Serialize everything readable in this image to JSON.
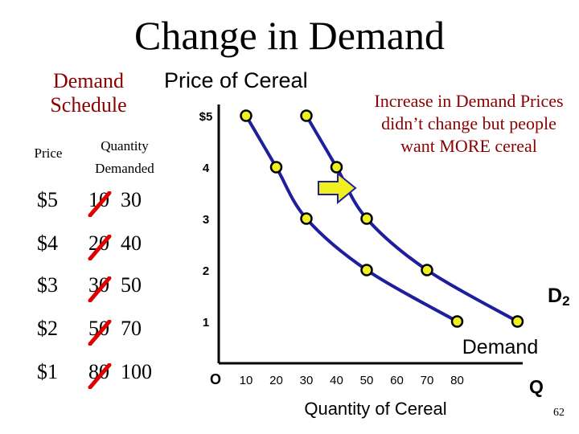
{
  "slide": {
    "title": "Change in Demand",
    "page_number": "62"
  },
  "schedule": {
    "title": "Demand Schedule",
    "price_header": "Price",
    "quantity_header_line1": "Quantity",
    "quantity_header_line2": "Demanded",
    "rows": [
      {
        "price": "$5",
        "old_qty": "10",
        "new_qty": "30"
      },
      {
        "price": "$4",
        "old_qty": "20",
        "new_qty": "40"
      },
      {
        "price": "$3",
        "old_qty": "30",
        "new_qty": "50"
      },
      {
        "price": "$2",
        "old_qty": "50",
        "new_qty": "70"
      },
      {
        "price": "$1",
        "old_qty": "80",
        "new_qty": "100"
      }
    ],
    "cross_color": "#e00000"
  },
  "chart_data": {
    "type": "line",
    "title": "Price of Cereal",
    "xlabel": "Quantity of Cereal",
    "ylabel": "",
    "xlim": [
      0,
      80
    ],
    "ylim": [
      0,
      5
    ],
    "origin_label": "O",
    "x_end_label": "Q",
    "x_ticks": [
      10,
      20,
      30,
      40,
      50,
      60,
      70,
      80
    ],
    "y_ticks": [
      {
        "value": 5,
        "label": "$5"
      },
      {
        "value": 4,
        "label": "4"
      },
      {
        "value": 3,
        "label": "3"
      },
      {
        "value": 2,
        "label": "2"
      },
      {
        "value": 1,
        "label": "1"
      }
    ],
    "series": [
      {
        "name": "Demand",
        "color": "#1f1f9e",
        "x": [
          10,
          20,
          30,
          50,
          80
        ],
        "y": [
          5,
          4,
          3,
          2,
          1
        ]
      },
      {
        "name": "D2",
        "color": "#1f1f9e",
        "x": [
          30,
          40,
          50,
          70,
          100
        ],
        "y": [
          5,
          4,
          3,
          2,
          1
        ]
      }
    ],
    "point_color": "#f0f020",
    "shift_arrow_color": "#f0f020",
    "annotation": "Increase in Demand Prices didn’t change but people want MORE cereal",
    "grid": false,
    "legend": "none"
  }
}
